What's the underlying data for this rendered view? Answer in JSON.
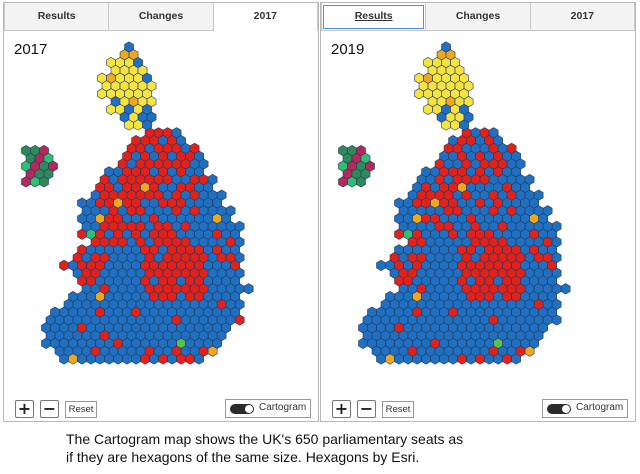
{
  "panels": [
    {
      "id": "left",
      "tabs": [
        "Results",
        "Changes",
        "2017"
      ],
      "active_tab": "2017",
      "year_label": "2017",
      "controls": {
        "zoom_in": "+",
        "zoom_out": "−",
        "reset": "Reset",
        "toggle": "Cartogram"
      }
    },
    {
      "id": "right",
      "tabs": [
        "Results",
        "Changes",
        "2017"
      ],
      "active_tab": "Results",
      "year_label": "2019",
      "controls": {
        "zoom_in": "+",
        "zoom_out": "−",
        "reset": "Reset",
        "toggle": "Cartogram"
      }
    }
  ],
  "caption": {
    "line1": "The Cartogram map shows the UK's 650 parliamentary seats as",
    "line2": "if they are hexagons of the same size. Hexagons by Esri."
  },
  "party_colors": {
    "conservative": "#1f6fc2",
    "labour": "#e4201a",
    "snp": "#f5e342",
    "libdem": "#f0a71f",
    "plaid": "#2ebf74",
    "green": "#58c24b",
    "ni_sf": "#2e8a5a",
    "ni_dup": "#b5295a",
    "speaker": "#9a9a9a"
  }
}
